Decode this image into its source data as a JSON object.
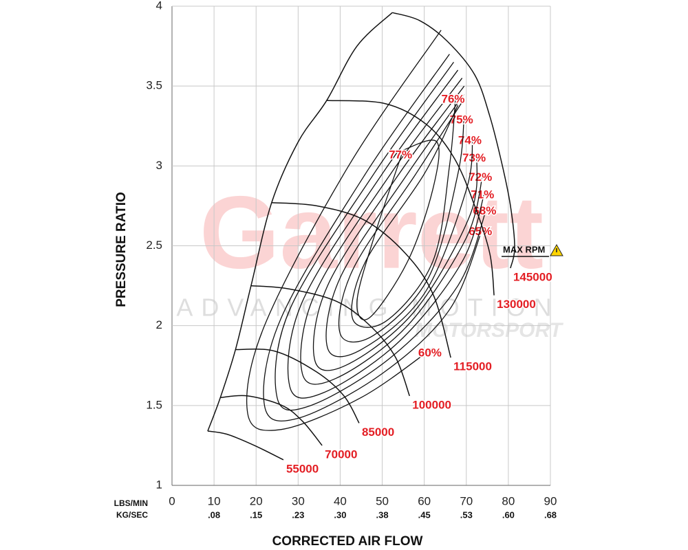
{
  "chart_data": {
    "type": "compressor-map",
    "xlabel": "CORRECTED AIR FLOW",
    "ylabel": "PRESSURE RATIO",
    "x_row_label": "LBS/MIN",
    "x2_row_label": "KG/SEC",
    "xlim": [
      0,
      90
    ],
    "xticks": [
      0,
      10,
      20,
      30,
      40,
      50,
      60,
      70,
      80,
      90
    ],
    "x2lim": [
      0,
      0.6804
    ],
    "x2ticks": [
      {
        "value": 0.0756,
        "label": ".08"
      },
      {
        "value": 0.1512,
        "label": ".15"
      },
      {
        "value": 0.2268,
        "label": ".23"
      },
      {
        "value": 0.3024,
        "label": ".30"
      },
      {
        "value": 0.378,
        "label": ".38"
      },
      {
        "value": 0.4536,
        "label": ".45"
      },
      {
        "value": 0.5292,
        "label": ".53"
      },
      {
        "value": 0.6048,
        "label": ".60"
      },
      {
        "value": 0.6804,
        "label": ".68"
      }
    ],
    "ylim": [
      1,
      4
    ],
    "yticks": [
      1,
      1.5,
      2,
      2.5,
      3,
      3.5,
      4
    ],
    "grid": true,
    "line_color": "#111111",
    "label_color": "#e31e24",
    "watermark": [
      "Garrett",
      "ADVANCING MOTION",
      "MOTORSPORT"
    ],
    "max_rpm_label": "MAX RPM",
    "surge_line": {
      "x": [
        8.5,
        11.5,
        15.1,
        18.8,
        23.7,
        30,
        36.8,
        44,
        52.4
      ],
      "y": [
        1.34,
        1.55,
        1.85,
        2.25,
        2.77,
        3.15,
        3.41,
        3.75,
        3.96
      ]
    },
    "speed_lines": [
      {
        "name": "55000",
        "x": [
          8.5,
          13.1,
          19.6,
          26.5
        ],
        "y": [
          1.34,
          1.32,
          1.25,
          1.16
        ]
      },
      {
        "name": "70000",
        "x": [
          11.5,
          18,
          26.2,
          31.1,
          35.7
        ],
        "y": [
          1.55,
          1.56,
          1.5,
          1.4,
          1.25
        ]
      },
      {
        "name": "85000",
        "x": [
          15.1,
          24.5,
          34.4,
          40.9,
          44.5
        ],
        "y": [
          1.85,
          1.84,
          1.71,
          1.56,
          1.39
        ]
      },
      {
        "name": "100000",
        "x": [
          18.8,
          27.8,
          39.3,
          47.5,
          53.2,
          56.5
        ],
        "y": [
          2.25,
          2.23,
          2.15,
          1.99,
          1.8,
          1.56
        ]
      },
      {
        "name": "115000",
        "x": [
          23.7,
          34.4,
          45.8,
          55.6,
          62.2,
          66.3
        ],
        "y": [
          2.77,
          2.75,
          2.66,
          2.45,
          2.19,
          1.8
        ]
      },
      {
        "name": "130000",
        "x": [
          36.8,
          50.7,
          60.5,
          67.1,
          72,
          75.6,
          76.6
        ],
        "y": [
          3.41,
          3.39,
          3.26,
          3.05,
          2.75,
          2.45,
          2.19
        ]
      },
      {
        "name": "145000",
        "x": [
          52.4,
          58.9,
          65.5,
          72,
          75.6,
          78.5,
          80.5,
          81.5,
          80.5
        ],
        "y": [
          3.96,
          3.91,
          3.78,
          3.57,
          3.31,
          3.01,
          2.75,
          2.49,
          2.36
        ]
      }
    ],
    "efficiency_contours": [
      {
        "name": "60%",
        "x": [
          64,
          42,
          22,
          18,
          26,
          45,
          62
        ],
        "y": [
          3.85,
          3.0,
          2.0,
          1.45,
          1.35,
          1.55,
          1.86
        ]
      },
      {
        "name": "65%",
        "x": [
          66,
          46,
          26,
          22,
          30,
          50,
          66,
          74
        ],
        "y": [
          3.7,
          2.95,
          2.05,
          1.5,
          1.42,
          1.7,
          2.1,
          2.62
        ]
      },
      {
        "name": "68%",
        "x": [
          67,
          48,
          28,
          25,
          33,
          52,
          68,
          75
        ],
        "y": [
          3.65,
          2.95,
          2.1,
          1.55,
          1.5,
          1.8,
          2.25,
          2.75
        ]
      },
      {
        "name": "71%",
        "x": [
          68,
          50,
          31,
          28,
          36,
          54,
          69,
          74.5
        ],
        "y": [
          3.6,
          2.95,
          2.15,
          1.62,
          1.58,
          1.9,
          2.4,
          2.85
        ]
      },
      {
        "name": "72%",
        "x": [
          69,
          52,
          34,
          31,
          39,
          56,
          70,
          74
        ],
        "y": [
          3.55,
          2.95,
          2.2,
          1.7,
          1.67,
          2.0,
          2.55,
          2.96
        ]
      },
      {
        "name": "73%",
        "x": [
          69.5,
          54,
          37,
          34,
          42,
          58,
          71,
          72.5
        ],
        "y": [
          3.5,
          2.95,
          2.25,
          1.78,
          1.76,
          2.1,
          2.7,
          3.08
        ]
      },
      {
        "name": "74%",
        "x": [
          69.5,
          56,
          40,
          37,
          45,
          60,
          70,
          71.5
        ],
        "y": [
          3.45,
          2.95,
          2.3,
          1.86,
          1.85,
          2.2,
          2.85,
          3.19
        ]
      },
      {
        "name": "75%",
        "x": [
          69,
          58,
          43,
          40,
          48,
          61,
          68,
          69.5
        ],
        "y": [
          3.4,
          2.95,
          2.35,
          1.95,
          1.94,
          2.3,
          2.95,
          3.32
        ]
      },
      {
        "name": "76%",
        "x": [
          68,
          60,
          46,
          43,
          51,
          62,
          66,
          67.5
        ],
        "y": [
          3.38,
          2.95,
          2.4,
          2.04,
          2.03,
          2.4,
          3.0,
          3.45
        ]
      },
      {
        "name": "77%",
        "x": [
          55,
          48,
          44,
          47,
          56,
          62,
          63,
          55
        ],
        "y": [
          3.1,
          2.55,
          2.15,
          2.05,
          2.4,
          2.85,
          3.15,
          3.1
        ]
      }
    ]
  }
}
